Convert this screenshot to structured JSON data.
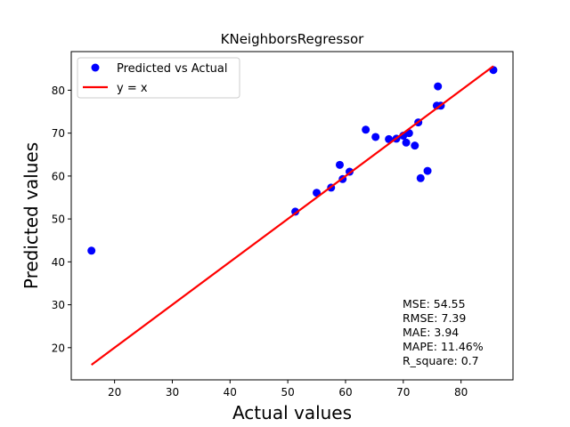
{
  "chart_data": {
    "type": "scatter",
    "title": "KNeighborsRegressor",
    "xlabel": "Actual values",
    "ylabel": "Predicted values",
    "xlim": [
      12.5,
      89.0
    ],
    "ylim": [
      12.5,
      89.0
    ],
    "xticks": [
      20,
      30,
      40,
      50,
      60,
      70,
      80
    ],
    "yticks": [
      20,
      30,
      40,
      50,
      60,
      70,
      80
    ],
    "grid": false,
    "legend_position": "top-left",
    "series": [
      {
        "name": "Predicted vs Actual",
        "kind": "scatter",
        "color": "#0000ff",
        "points": [
          [
            16.0,
            42.6
          ],
          [
            51.3,
            51.7
          ],
          [
            55.0,
            56.1
          ],
          [
            57.5,
            57.3
          ],
          [
            59.0,
            62.6
          ],
          [
            59.5,
            59.3
          ],
          [
            60.7,
            61.0
          ],
          [
            63.5,
            70.8
          ],
          [
            65.2,
            69.1
          ],
          [
            67.5,
            68.6
          ],
          [
            68.8,
            68.7
          ],
          [
            70.0,
            69.4
          ],
          [
            70.5,
            67.8
          ],
          [
            71.0,
            70.0
          ],
          [
            72.0,
            67.1
          ],
          [
            72.6,
            72.5
          ],
          [
            73.0,
            59.5
          ],
          [
            74.2,
            61.2
          ],
          [
            75.8,
            76.4
          ],
          [
            76.0,
            80.9
          ],
          [
            76.5,
            76.4
          ],
          [
            85.6,
            84.7
          ]
        ]
      },
      {
        "name": "y = x",
        "kind": "line",
        "color": "#ff0000",
        "points": [
          [
            16.0,
            16.0
          ],
          [
            85.6,
            85.6
          ]
        ]
      }
    ],
    "annotations": [
      "MSE: 54.55",
      "RMSE: 7.39",
      "MAE: 3.94",
      "MAPE: 11.46%",
      "R_square: 0.7"
    ]
  }
}
